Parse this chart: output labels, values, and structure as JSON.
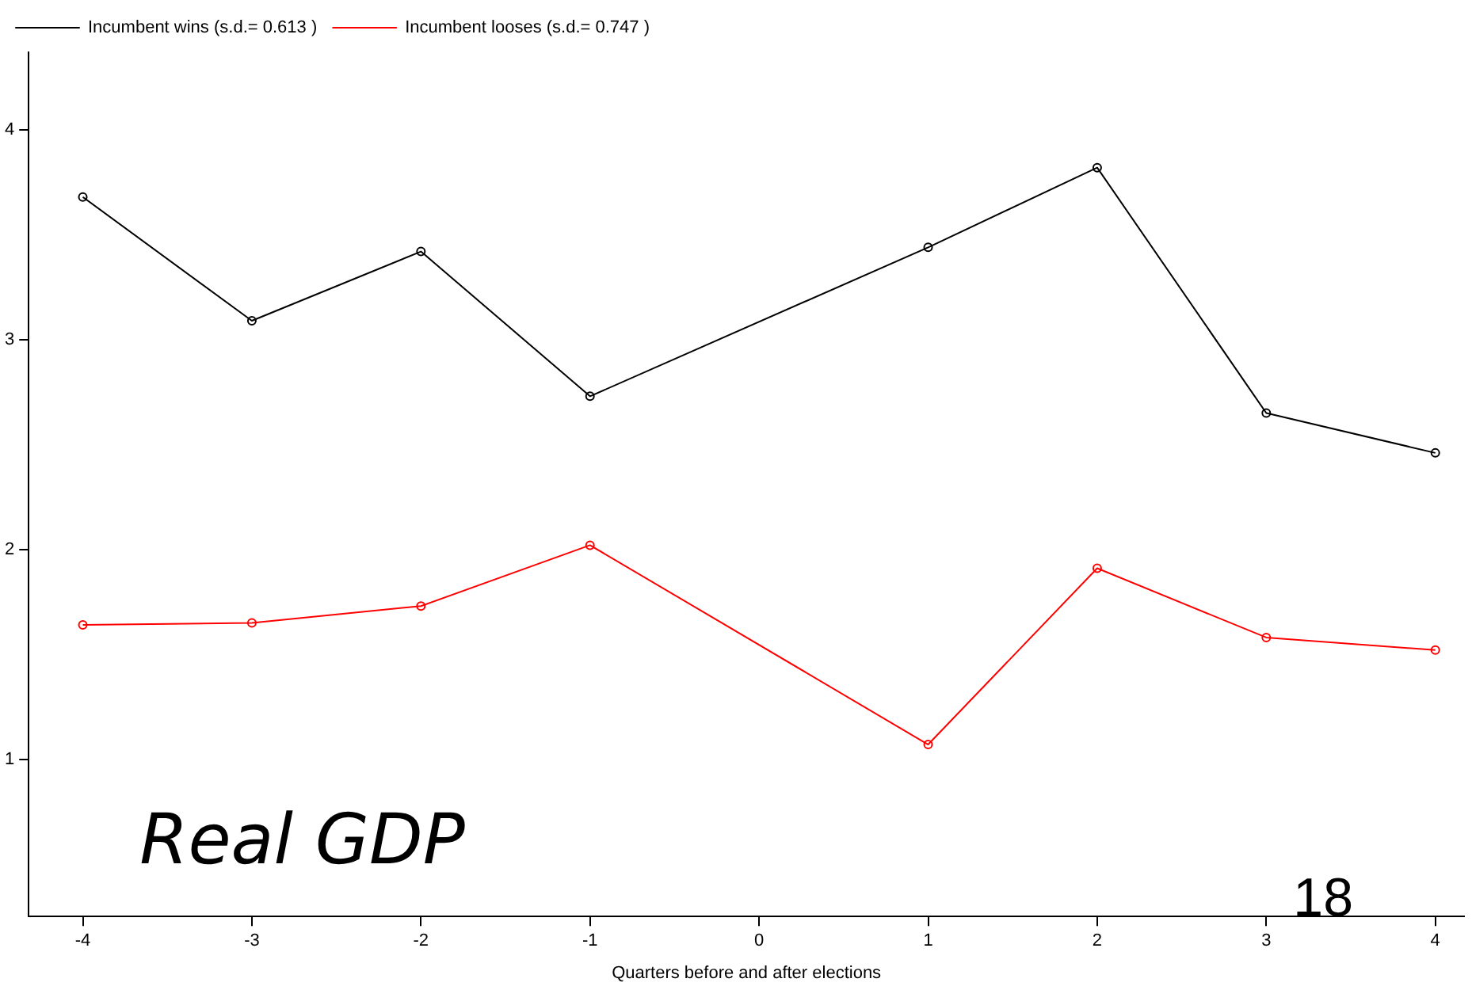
{
  "chart_data": {
    "type": "line",
    "xlabel": "Quarters before and after elections",
    "x": [
      -4,
      -3,
      -2,
      -1,
      1,
      2,
      3,
      4
    ],
    "series": [
      {
        "name": "Incumbent wins (s.d.= 0.613 )",
        "color": "#000000",
        "values": [
          3.68,
          3.09,
          3.42,
          2.73,
          3.44,
          3.82,
          2.65,
          2.46
        ]
      },
      {
        "name": "Incumbent looses (s.d.= 0.747 )",
        "color": "#ff0000",
        "values": [
          1.64,
          1.65,
          1.73,
          2.02,
          1.07,
          1.91,
          1.58,
          1.52
        ]
      }
    ],
    "xlim": [
      -4.32,
      4.17
    ],
    "xticks": [
      -4,
      -3,
      -2,
      -1,
      0,
      1,
      2,
      3,
      4
    ],
    "ylim": [
      0.25,
      4.37
    ],
    "yticks": [
      1,
      2,
      3,
      4
    ],
    "grid": false,
    "legend": "top left",
    "marker": "circle",
    "line_style": "solid",
    "annotations": [
      "Real GDP",
      "18"
    ]
  }
}
